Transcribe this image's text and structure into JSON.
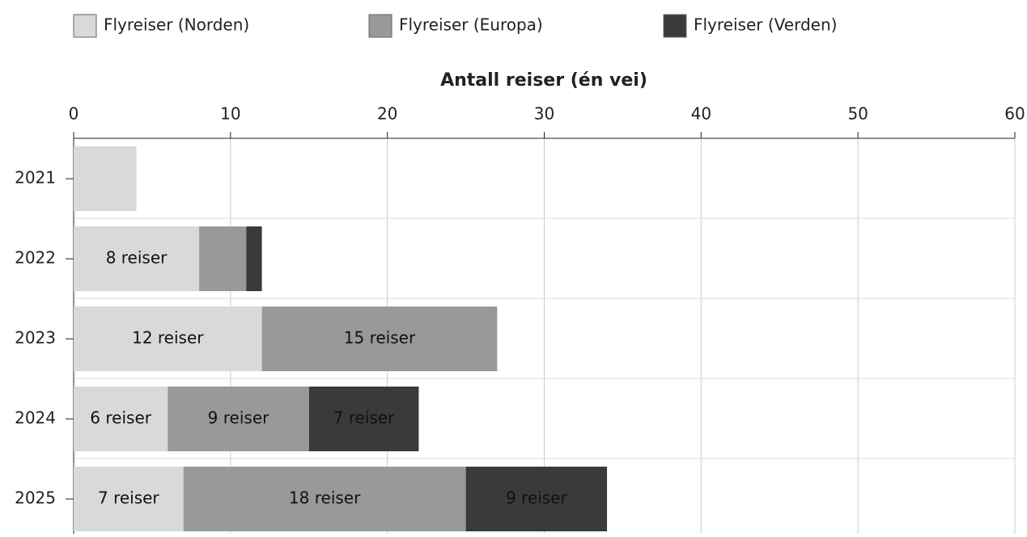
{
  "chart_data": {
    "type": "stacked-bar-horizontal",
    "title": "Antall reiser (én vei)",
    "categories": [
      "2021",
      "2022",
      "2023",
      "2024",
      "2025"
    ],
    "series": [
      {
        "name": "Flyreiser (Norden)",
        "color": "#d9d9d9",
        "values": [
          4,
          8,
          12,
          6,
          7
        ],
        "value_labels": [
          null,
          "8 reiser",
          "12 reiser",
          "6 reiser",
          "7 reiser"
        ]
      },
      {
        "name": "Flyreiser (Europa)",
        "color": "#999999",
        "values": [
          0,
          3,
          15,
          9,
          18
        ],
        "value_labels": [
          null,
          null,
          "15 reiser",
          "9 reiser",
          "18 reiser"
        ]
      },
      {
        "name": "Flyreiser (Verden)",
        "color": "#3a3a3a",
        "values": [
          0,
          1,
          0,
          7,
          9
        ],
        "value_labels": [
          null,
          null,
          null,
          "7 reiser",
          "9 reiser"
        ]
      }
    ],
    "xlim": [
      0,
      60
    ],
    "xticks": [
      0,
      10,
      20,
      30,
      40,
      50,
      60
    ],
    "grid": true,
    "legend": "top"
  }
}
